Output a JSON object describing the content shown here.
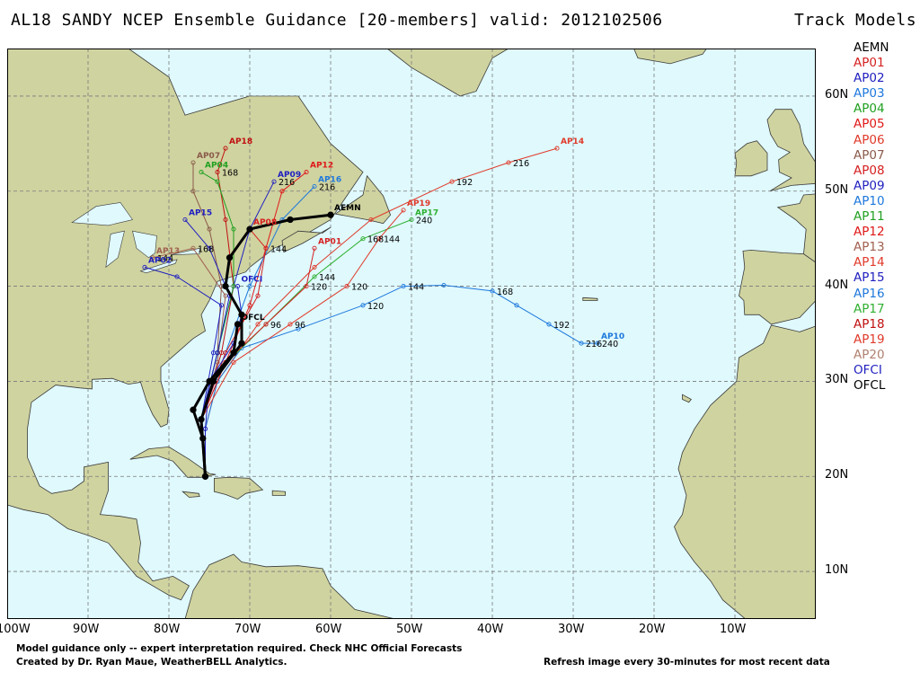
{
  "header": {
    "title": "AL18 SANDY NCEP Ensemble Guidance [20-members] valid: 2012102506",
    "legend_title": "Track Models"
  },
  "legend": [
    {
      "label": "AEMN",
      "color": "#000000"
    },
    {
      "label": "AP01",
      "color": "#d62020"
    },
    {
      "label": "AP02",
      "color": "#2020c0"
    },
    {
      "label": "AP03",
      "color": "#1e78dc"
    },
    {
      "label": "AP04",
      "color": "#20a020"
    },
    {
      "label": "AP05",
      "color": "#e01818"
    },
    {
      "label": "AP06",
      "color": "#e03a2a"
    },
    {
      "label": "AP07",
      "color": "#8a5a4a"
    },
    {
      "label": "AP08",
      "color": "#d62020"
    },
    {
      "label": "AP09",
      "color": "#2020c0"
    },
    {
      "label": "AP10",
      "color": "#1e78dc"
    },
    {
      "label": "AP11",
      "color": "#20a020"
    },
    {
      "label": "AP12",
      "color": "#e01818"
    },
    {
      "label": "AP13",
      "color": "#a06050"
    },
    {
      "label": "AP14",
      "color": "#e03a2a"
    },
    {
      "label": "AP15",
      "color": "#2020c0"
    },
    {
      "label": "AP16",
      "color": "#1e78dc"
    },
    {
      "label": "AP17",
      "color": "#30b030"
    },
    {
      "label": "AP18",
      "color": "#c01010"
    },
    {
      "label": "AP19",
      "color": "#e03a2a"
    },
    {
      "label": "AP20",
      "color": "#b08070"
    },
    {
      "label": "OFCI",
      "color": "#2020c0"
    },
    {
      "label": "OFCL",
      "color": "#000000"
    }
  ],
  "axes": {
    "x_ticks": [
      "100W",
      "90W",
      "80W",
      "70W",
      "60W",
      "50W",
      "40W",
      "30W",
      "20W",
      "10W"
    ],
    "y_ticks": [
      "60N",
      "50N",
      "40N",
      "30N",
      "20N",
      "10N"
    ]
  },
  "map": {
    "lon_range": [
      -100,
      0
    ],
    "lat_range": [
      5,
      65
    ],
    "ocean_color": "#dff9fd",
    "land_color": "#cfd3a0",
    "grid": true
  },
  "tracks": [
    {
      "model": "AP14",
      "color": "#e03a2a",
      "points": [
        [
          -75.5,
          25
        ],
        [
          -74,
          30
        ],
        [
          -69,
          36
        ],
        [
          -62,
          42
        ],
        [
          -55,
          47
        ],
        [
          -45,
          51
        ],
        [
          -38,
          53
        ],
        [
          -32,
          54.5
        ]
      ],
      "hours": [
        {
          "i": 5,
          "h": "192"
        },
        {
          "i": 6,
          "h": "216"
        }
      ]
    },
    {
      "model": "AP10",
      "color": "#1e78dc",
      "points": [
        [
          -75.5,
          25
        ],
        [
          -74,
          30
        ],
        [
          -71,
          33.5
        ],
        [
          -64,
          35.5
        ],
        [
          -56,
          38
        ],
        [
          -51,
          40
        ],
        [
          -46,
          40.1
        ],
        [
          -40,
          39.5
        ],
        [
          -37,
          38
        ],
        [
          -33,
          36
        ],
        [
          -29,
          34
        ],
        [
          -27,
          34
        ]
      ],
      "hours": [
        {
          "i": 4,
          "h": "120"
        },
        {
          "i": 5,
          "h": "144"
        },
        {
          "i": 7,
          "h": "168"
        },
        {
          "i": 9,
          "h": "192"
        },
        {
          "i": 10,
          "h": "216"
        },
        {
          "i": 11,
          "h": "240"
        }
      ]
    },
    {
      "model": "AP17",
      "color": "#30b030",
      "points": [
        [
          -76,
          26
        ],
        [
          -74,
          31
        ],
        [
          -68,
          36
        ],
        [
          -62,
          41
        ],
        [
          -56,
          45
        ],
        [
          -50,
          47
        ]
      ],
      "hours": [
        {
          "i": 3,
          "h": "144"
        },
        {
          "i": 4,
          "h": "168"
        },
        {
          "i": 5,
          "h": "240"
        }
      ]
    },
    {
      "model": "AP12",
      "color": "#e01818",
      "points": [
        [
          -76,
          26
        ],
        [
          -73,
          32
        ],
        [
          -70,
          38
        ],
        [
          -68,
          44
        ],
        [
          -66,
          50
        ],
        [
          -63,
          52
        ]
      ],
      "hours": []
    },
    {
      "model": "AP18",
      "color": "#c01010",
      "points": [
        [
          -76,
          26
        ],
        [
          -73.5,
          33
        ],
        [
          -72,
          40
        ],
        [
          -73,
          47
        ],
        [
          -74,
          52
        ],
        [
          -73,
          54.5
        ]
      ],
      "hours": [
        {
          "i": 4,
          "h": "168"
        }
      ]
    },
    {
      "model": "AP07",
      "color": "#8a5a4a",
      "points": [
        [
          -76,
          26
        ],
        [
          -74,
          33
        ],
        [
          -73.5,
          40
        ],
        [
          -75,
          46
        ],
        [
          -77,
          50
        ],
        [
          -77,
          53
        ]
      ],
      "hours": []
    },
    {
      "model": "AP13",
      "color": "#a06050",
      "points": [
        [
          -76,
          26
        ],
        [
          -74,
          32
        ],
        [
          -73,
          39
        ],
        [
          -77,
          44
        ],
        [
          -82,
          43
        ]
      ],
      "hours": [
        {
          "i": 3,
          "h": "168"
        },
        {
          "i": 4,
          "h": "144"
        }
      ]
    },
    {
      "model": "AP09",
      "color": "#2020c0",
      "points": [
        [
          -76,
          26
        ],
        [
          -74,
          33
        ],
        [
          -72,
          40
        ],
        [
          -70,
          46
        ],
        [
          -67,
          51
        ]
      ],
      "hours": [
        {
          "i": 4,
          "h": "216"
        }
      ]
    },
    {
      "model": "AP16",
      "color": "#1e78dc",
      "points": [
        [
          -76,
          26
        ],
        [
          -73,
          33
        ],
        [
          -70,
          40
        ],
        [
          -66,
          47
        ],
        [
          -62,
          50.5
        ]
      ],
      "hours": [
        {
          "i": 4,
          "h": "216"
        }
      ]
    },
    {
      "model": "AP04",
      "color": "#20a020",
      "points": [
        [
          -76,
          26
        ],
        [
          -74,
          33
        ],
        [
          -72,
          40
        ],
        [
          -72,
          46
        ],
        [
          -74,
          51
        ],
        [
          -76,
          52
        ]
      ],
      "hours": []
    },
    {
      "model": "AP02",
      "color": "#2020c0",
      "points": [
        [
          -76,
          26
        ],
        [
          -74.5,
          33
        ],
        [
          -73.5,
          38
        ],
        [
          -79,
          41
        ],
        [
          -83,
          42
        ]
      ],
      "hours": []
    },
    {
      "model": "AP08",
      "color": "#d62020",
      "points": [
        [
          -76,
          26
        ],
        [
          -73,
          33
        ],
        [
          -69,
          39
        ],
        [
          -68,
          44
        ],
        [
          -70,
          46
        ]
      ],
      "hours": [
        {
          "i": 3,
          "h": "144"
        }
      ]
    },
    {
      "model": "AP01",
      "color": "#d62020",
      "points": [
        [
          -76,
          26
        ],
        [
          -73,
          32
        ],
        [
          -68,
          36
        ],
        [
          -63,
          40
        ],
        [
          -62,
          44
        ]
      ],
      "hours": [
        {
          "i": 2,
          "h": "96"
        },
        {
          "i": 3,
          "h": "120"
        }
      ]
    },
    {
      "model": "AP19",
      "color": "#e03a2a",
      "points": [
        [
          -76,
          26
        ],
        [
          -72,
          32
        ],
        [
          -65,
          36
        ],
        [
          -58,
          40
        ],
        [
          -54,
          45
        ],
        [
          -51,
          48
        ]
      ],
      "hours": [
        {
          "i": 2,
          "h": "96"
        },
        {
          "i": 3,
          "h": "120"
        },
        {
          "i": 4,
          "h": "144"
        }
      ]
    },
    {
      "model": "AP15",
      "color": "#2020c0",
      "points": [
        [
          -76,
          26
        ],
        [
          -74,
          33
        ],
        [
          -72.5,
          39
        ],
        [
          -75,
          44
        ],
        [
          -78,
          47
        ]
      ],
      "hours": []
    },
    {
      "model": "OFCI",
      "color": "#2020c0",
      "points": [
        [
          -75.5,
          20
        ],
        [
          -75.5,
          25
        ],
        [
          -75,
          30
        ],
        [
          -72,
          34
        ],
        [
          -71,
          37
        ],
        [
          -71.5,
          40
        ]
      ],
      "hours": []
    },
    {
      "model": "AEMN",
      "color": "#000000",
      "width": 3,
      "points": [
        [
          -75.5,
          20
        ],
        [
          -76,
          26
        ],
        [
          -74.5,
          30
        ],
        [
          -71,
          34
        ],
        [
          -71,
          37
        ],
        [
          -73,
          40
        ],
        [
          -72.5,
          43
        ],
        [
          -70,
          46
        ],
        [
          -65,
          47
        ],
        [
          -60,
          47.5
        ]
      ],
      "hours": []
    },
    {
      "model": "OFCL",
      "color": "#000000",
      "width": 3,
      "points": [
        [
          -75.5,
          20
        ],
        [
          -75.8,
          24
        ],
        [
          -77,
          27
        ],
        [
          -75,
          30
        ],
        [
          -72,
          33
        ],
        [
          -71.5,
          36
        ]
      ],
      "hours": []
    }
  ],
  "footer": {
    "line1": "Model guidance only -- expert interpretation required.  Check NHC Official Forecasts",
    "line2": "Created by Dr. Ryan Maue, WeatherBELL Analytics.",
    "right": "Refresh image every 30-minutes for most recent data"
  }
}
